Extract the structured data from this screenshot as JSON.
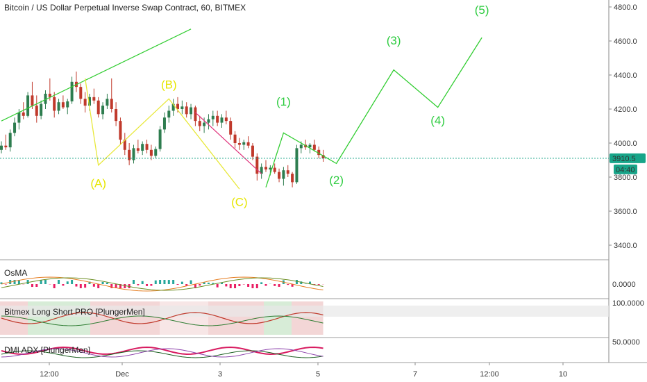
{
  "header": {
    "title": "Bitcoin / US Dollar Perpetual Inverse Swap Contract, 60, BITMEX"
  },
  "colors": {
    "up": "#2e7d4f",
    "down": "#c0392b",
    "wave_green": "#32cd32",
    "wave_yellow": "#e8e83a",
    "wave_magenta": "#e0307a",
    "price_line": "#17a589",
    "axis_text": "#333333"
  },
  "chart_data": {
    "type": "candlestick",
    "price_axis": {
      "ticks": [
        "4800.0",
        "4600.0",
        "4400.0",
        "4200.0",
        "4000.0",
        "3800.0",
        "3600.0",
        "3400.0"
      ],
      "range": [
        3320,
        4860
      ]
    },
    "time_axis": {
      "ticks": [
        "12:00",
        "Dec",
        "3",
        "5",
        "7",
        "12:00",
        "10"
      ]
    },
    "last_price": {
      "value": 3910.5,
      "label": "3910.5",
      "countdown": "04:40"
    },
    "candles_ohlc": [
      [
        3960,
        4010,
        3940,
        3985
      ],
      [
        3985,
        4050,
        3960,
        3975
      ],
      [
        3975,
        4080,
        3950,
        4060
      ],
      [
        4060,
        4150,
        4040,
        4120
      ],
      [
        4120,
        4200,
        4080,
        4180
      ],
      [
        4180,
        4240,
        4140,
        4160
      ],
      [
        4160,
        4300,
        4150,
        4280
      ],
      [
        4280,
        4360,
        4200,
        4220
      ],
      [
        4220,
        4280,
        4120,
        4160
      ],
      [
        4160,
        4250,
        4140,
        4230
      ],
      [
        4230,
        4310,
        4200,
        4290
      ],
      [
        4290,
        4380,
        4250,
        4270
      ],
      [
        4270,
        4300,
        4150,
        4190
      ],
      [
        4190,
        4260,
        4170,
        4240
      ],
      [
        4240,
        4280,
        4200,
        4210
      ],
      [
        4210,
        4260,
        4170,
        4245
      ],
      [
        4245,
        4390,
        4230,
        4360
      ],
      [
        4360,
        4420,
        4300,
        4330
      ],
      [
        4330,
        4350,
        4230,
        4260
      ],
      [
        4260,
        4300,
        4180,
        4220
      ],
      [
        4220,
        4290,
        4190,
        4270
      ],
      [
        4270,
        4320,
        4230,
        4250
      ],
      [
        4250,
        4270,
        4150,
        4170
      ],
      [
        4170,
        4240,
        4140,
        4220
      ],
      [
        4220,
        4290,
        4200,
        4260
      ],
      [
        4260,
        4380,
        4180,
        4200
      ],
      [
        4200,
        4240,
        4100,
        4130
      ],
      [
        4130,
        4150,
        3990,
        4020
      ],
      [
        4020,
        4060,
        3930,
        3960
      ],
      [
        3960,
        4000,
        3870,
        3900
      ],
      [
        3900,
        3990,
        3880,
        3970
      ],
      [
        3970,
        4020,
        3940,
        3955
      ],
      [
        3955,
        4010,
        3930,
        3995
      ],
      [
        3995,
        4020,
        3940,
        3960
      ],
      [
        3960,
        3990,
        3900,
        3925
      ],
      [
        3925,
        3980,
        3910,
        3965
      ],
      [
        3965,
        4100,
        3950,
        4080
      ],
      [
        4080,
        4180,
        4060,
        4150
      ],
      [
        4150,
        4220,
        4120,
        4190
      ],
      [
        4190,
        4260,
        4160,
        4230
      ],
      [
        4230,
        4270,
        4180,
        4200
      ],
      [
        4200,
        4250,
        4170,
        4215
      ],
      [
        4215,
        4240,
        4150,
        4170
      ],
      [
        4170,
        4230,
        4140,
        4210
      ],
      [
        4210,
        4220,
        4100,
        4130
      ],
      [
        4130,
        4160,
        4070,
        4100
      ],
      [
        4100,
        4150,
        4060,
        4120
      ],
      [
        4120,
        4170,
        4080,
        4140
      ],
      [
        4140,
        4190,
        4100,
        4160
      ],
      [
        4160,
        4190,
        4100,
        4120
      ],
      [
        4120,
        4170,
        4090,
        4150
      ],
      [
        4150,
        4190,
        4110,
        4130
      ],
      [
        4130,
        4150,
        4020,
        4050
      ],
      [
        4050,
        4070,
        3970,
        4000
      ],
      [
        4000,
        4030,
        3960,
        3990
      ],
      [
        3990,
        4020,
        3960,
        4005
      ],
      [
        4005,
        4040,
        3970,
        3985
      ],
      [
        3985,
        4000,
        3900,
        3920
      ],
      [
        3920,
        3940,
        3780,
        3820
      ],
      [
        3820,
        3880,
        3790,
        3860
      ],
      [
        3860,
        3900,
        3830,
        3845
      ],
      [
        3845,
        3870,
        3810,
        3855
      ],
      [
        3855,
        3880,
        3820,
        3830
      ],
      [
        3830,
        3850,
        3770,
        3790
      ],
      [
        3790,
        3860,
        3750,
        3840
      ],
      [
        3840,
        3870,
        3800,
        3820
      ],
      [
        3820,
        3830,
        3740,
        3770
      ],
      [
        3770,
        3990,
        3760,
        3970
      ],
      [
        3970,
        4010,
        3940,
        3990
      ],
      [
        3990,
        4020,
        3960,
        3975
      ],
      [
        3975,
        4000,
        3940,
        3990
      ],
      [
        3990,
        4020,
        3950,
        3960
      ],
      [
        3960,
        3980,
        3910,
        3930
      ],
      [
        3930,
        3960,
        3890,
        3910
      ]
    ],
    "trendline_upper": [
      [
        0,
        4130
      ],
      [
        43,
        4670
      ]
    ],
    "wave_corrective": {
      "labels": [
        "(A)",
        "(B)",
        "(C)"
      ],
      "points": [
        [
          19,
          4380
        ],
        [
          22,
          3870
        ],
        [
          38,
          4260
        ],
        [
          54,
          3730
        ]
      ]
    },
    "wave_impulse_projection": {
      "labels": [
        "(1)",
        "(2)",
        "(3)",
        "(4)",
        "(5)"
      ],
      "points": [
        [
          60,
          3740
        ],
        [
          64,
          4060
        ],
        [
          76,
          3880
        ],
        [
          89,
          4430
        ],
        [
          99,
          4210
        ],
        [
          109,
          4620
        ]
      ]
    },
    "channel_magenta": [
      [
        44,
        4180
      ],
      [
        59,
        3820
      ]
    ],
    "indicators": [
      {
        "name": "OsMA",
        "ticks": [
          "0.0000"
        ]
      },
      {
        "name": "Bitmex Long Short PRO [PlungerMen]",
        "ticks": [
          "100.0000"
        ]
      },
      {
        "name": "DMI ADX [PlungerMen]",
        "ticks": [
          "50.0000"
        ]
      }
    ]
  }
}
